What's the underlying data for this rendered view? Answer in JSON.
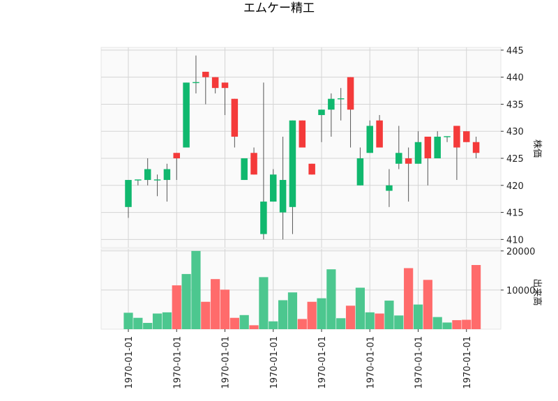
{
  "chart_data": {
    "type": "candlestick",
    "title": "エムケー精工",
    "price_axis": {
      "label": "株価",
      "ticks": [
        410,
        415,
        420,
        425,
        430,
        435,
        440,
        445
      ],
      "ylim": [
        408.5,
        445.5
      ]
    },
    "volume_axis": {
      "label": "出来高",
      "ticks": [
        10000,
        20000
      ],
      "tick_labels": [
        "10000",
        "20000"
      ],
      "ylim": [
        0,
        20500
      ]
    },
    "x_tick_labels": [
      "1970-01-01",
      "1970-01-01",
      "1970-01-01",
      "1970-01-01",
      "1970-01-01",
      "1970-01-01",
      "1970-01-01",
      "1970-01-01"
    ],
    "x_tick_index": [
      0,
      5,
      10,
      15,
      20,
      25,
      30,
      35
    ],
    "up_color": "#10b86e",
    "down_color": "#f43a3a",
    "up_volume_color": "#4cc78f",
    "down_volume_color": "#ff6b6b",
    "candles": [
      {
        "open": 416,
        "high": 421,
        "low": 414,
        "close": 421,
        "volume": 4200
      },
      {
        "open": 421,
        "high": 421,
        "low": 420,
        "close": 421,
        "volume": 2900
      },
      {
        "open": 421,
        "high": 425,
        "low": 420,
        "close": 423,
        "volume": 1600
      },
      {
        "open": 421,
        "high": 422,
        "low": 418,
        "close": 421,
        "volume": 4000
      },
      {
        "open": 421,
        "high": 424,
        "low": 417,
        "close": 423,
        "volume": 4300
      },
      {
        "open": 426,
        "high": 426,
        "low": 421,
        "close": 425,
        "volume": 11200
      },
      {
        "open": 427,
        "high": 439,
        "low": 427,
        "close": 439,
        "volume": 14100
      },
      {
        "open": 439,
        "high": 444,
        "low": 437,
        "close": 439,
        "volume": 20000
      },
      {
        "open": 441,
        "high": 441,
        "low": 435,
        "close": 440,
        "volume": 7000
      },
      {
        "open": 440,
        "high": 440,
        "low": 437,
        "close": 438,
        "volume": 12800
      },
      {
        "open": 439,
        "high": 439,
        "low": 433,
        "close": 438,
        "volume": 10100
      },
      {
        "open": 436,
        "high": 436,
        "low": 427,
        "close": 429,
        "volume": 2900
      },
      {
        "open": 421,
        "high": 425,
        "low": 421,
        "close": 425,
        "volume": 3600
      },
      {
        "open": 426,
        "high": 427,
        "low": 422,
        "close": 422,
        "volume": 1000
      },
      {
        "open": 411,
        "high": 439,
        "low": 410,
        "close": 417,
        "volume": 13300
      },
      {
        "open": 417,
        "high": 423,
        "low": 417,
        "close": 422,
        "volume": 2000
      },
      {
        "open": 415,
        "high": 429,
        "low": 410,
        "close": 421,
        "volume": 7400
      },
      {
        "open": 416,
        "high": 432,
        "low": 411,
        "close": 432,
        "volume": 9400
      },
      {
        "open": 432,
        "high": 432,
        "low": 427,
        "close": 427,
        "volume": 2600
      },
      {
        "open": 424,
        "high": 424,
        "low": 422,
        "close": 422,
        "volume": 7000
      },
      {
        "open": 433,
        "high": 434,
        "low": 428,
        "close": 434,
        "volume": 7900
      },
      {
        "open": 434,
        "high": 437,
        "low": 429,
        "close": 436,
        "volume": 15300
      },
      {
        "open": 436,
        "high": 438,
        "low": 432,
        "close": 436,
        "volume": 2800
      },
      {
        "open": 440,
        "high": 440,
        "low": 427,
        "close": 434,
        "volume": 6000
      },
      {
        "open": 420,
        "high": 427,
        "low": 420,
        "close": 425,
        "volume": 10600
      },
      {
        "open": 426,
        "high": 432,
        "low": 426,
        "close": 431,
        "volume": 4300
      },
      {
        "open": 432,
        "high": 433,
        "low": 427,
        "close": 427,
        "volume": 4000
      },
      {
        "open": 419,
        "high": 423,
        "low": 416,
        "close": 420,
        "volume": 7300
      },
      {
        "open": 424,
        "high": 431,
        "low": 423,
        "close": 426,
        "volume": 3500
      },
      {
        "open": 425,
        "high": 427,
        "low": 417,
        "close": 424,
        "volume": 15600
      },
      {
        "open": 424,
        "high": 430,
        "low": 424,
        "close": 428,
        "volume": 6300
      },
      {
        "open": 429,
        "high": 429,
        "low": 420,
        "close": 425,
        "volume": 12600
      },
      {
        "open": 425,
        "high": 430,
        "low": 425,
        "close": 429,
        "volume": 3100
      },
      {
        "open": 429,
        "high": 429,
        "low": 428,
        "close": 429,
        "volume": 1700
      },
      {
        "open": 431,
        "high": 431,
        "low": 421,
        "close": 427,
        "volume": 2300
      },
      {
        "open": 430,
        "high": 430,
        "low": 428,
        "close": 428,
        "volume": 2400
      },
      {
        "open": 428,
        "high": 429,
        "low": 425,
        "close": 426,
        "volume": 16400
      }
    ]
  }
}
